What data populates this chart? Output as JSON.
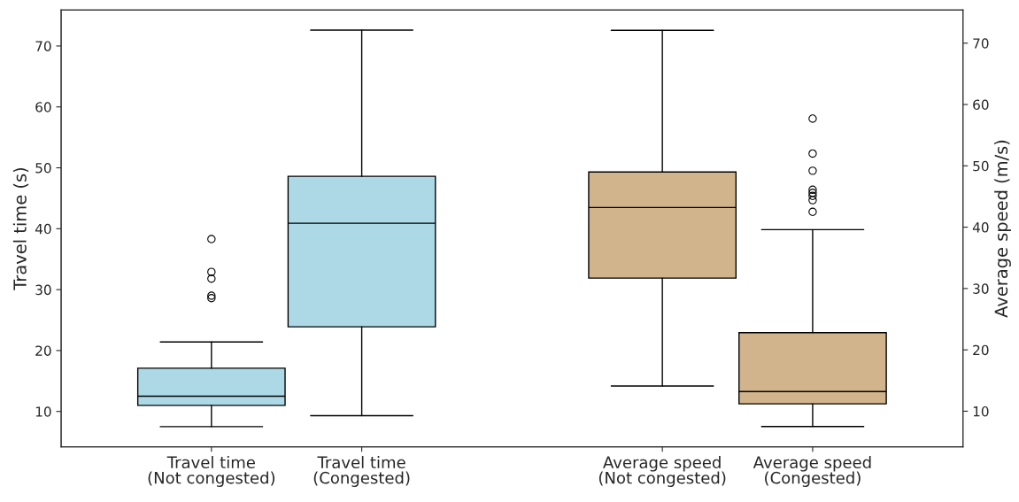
{
  "chart_data": {
    "type": "box",
    "ylabel": "Travel time (s)",
    "y2label": "Average speed (m/s)",
    "categories": [
      "Travel time\n(Not congested)",
      "Travel time\n(Congested)",
      "Average speed\n(Not congested)",
      "Average speed\n(Congested)"
    ],
    "ylim": [
      4.2,
      75.9
    ],
    "yticks": [
      10,
      20,
      30,
      40,
      50,
      60,
      70
    ],
    "y2lim": [
      4.2,
      75.4
    ],
    "y2ticks": [
      10,
      20,
      30,
      40,
      50,
      60,
      70
    ],
    "grid": false,
    "legend": false,
    "series": [
      {
        "color": "#add8e6",
        "boxes": [
          {
            "low": 7.5,
            "q1": 11.0,
            "median": 12.5,
            "q3": 17.1,
            "high": 21.4,
            "outliers": [
              38.3,
              32.9,
              31.8,
              29.0,
              28.6
            ]
          },
          {
            "low": 9.3,
            "q1": 23.9,
            "median": 40.9,
            "q3": 48.6,
            "high": 72.6
          },
          null,
          null
        ]
      },
      {
        "color": "#d2b48c",
        "axis": "y2",
        "boxes": [
          null,
          null,
          {
            "low": 14.1,
            "q1": 31.7,
            "median": 43.2,
            "q3": 49.0,
            "high": 72.1
          },
          {
            "low": 7.5,
            "q1": 11.2,
            "median": 13.2,
            "q3": 22.8,
            "high": 39.6,
            "outliers": [
              57.7,
              52.0,
              49.2,
              46.1,
              45.6,
              45.1,
              44.4,
              42.5
            ]
          }
        ]
      }
    ]
  }
}
